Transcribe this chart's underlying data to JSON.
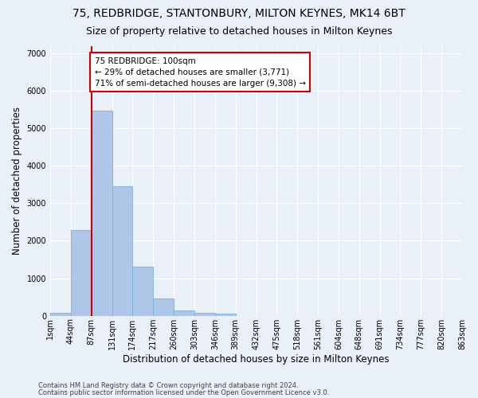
{
  "title": "75, REDBRIDGE, STANTONBURY, MILTON KEYNES, MK14 6BT",
  "subtitle": "Size of property relative to detached houses in Milton Keynes",
  "xlabel": "Distribution of detached houses by size in Milton Keynes",
  "ylabel": "Number of detached properties",
  "footnote1": "Contains HM Land Registry data © Crown copyright and database right 2024.",
  "footnote2": "Contains public sector information licensed under the Open Government Licence v3.0.",
  "bar_color": "#aec6e8",
  "bar_edge_color": "#7bafd4",
  "vline_color": "#cc0000",
  "vline_x": 2.0,
  "annotation_text": "75 REDBRIDGE: 100sqm\n← 29% of detached houses are smaller (3,771)\n71% of semi-detached houses are larger (9,308) →",
  "annotation_box_color": "#ffffff",
  "annotation_box_edgecolor": "#cc0000",
  "bins": [
    "1sqm",
    "44sqm",
    "87sqm",
    "131sqm",
    "174sqm",
    "217sqm",
    "260sqm",
    "303sqm",
    "346sqm",
    "389sqm",
    "432sqm",
    "475sqm",
    "518sqm",
    "561sqm",
    "604sqm",
    "648sqm",
    "691sqm",
    "734sqm",
    "777sqm",
    "820sqm",
    "863sqm"
  ],
  "values": [
    75,
    2275,
    5475,
    3450,
    1300,
    450,
    150,
    80,
    50,
    0,
    0,
    0,
    0,
    0,
    0,
    0,
    0,
    0,
    0,
    0
  ],
  "ylim": [
    0,
    7200
  ],
  "yticks": [
    0,
    1000,
    2000,
    3000,
    4000,
    5000,
    6000,
    7000
  ],
  "bg_color": "#eaf0f8",
  "grid_color": "#ffffff",
  "title_fontsize": 10,
  "subtitle_fontsize": 9,
  "axis_label_fontsize": 8.5,
  "tick_fontsize": 7,
  "annotation_fontsize": 7.5,
  "footnote_fontsize": 6
}
